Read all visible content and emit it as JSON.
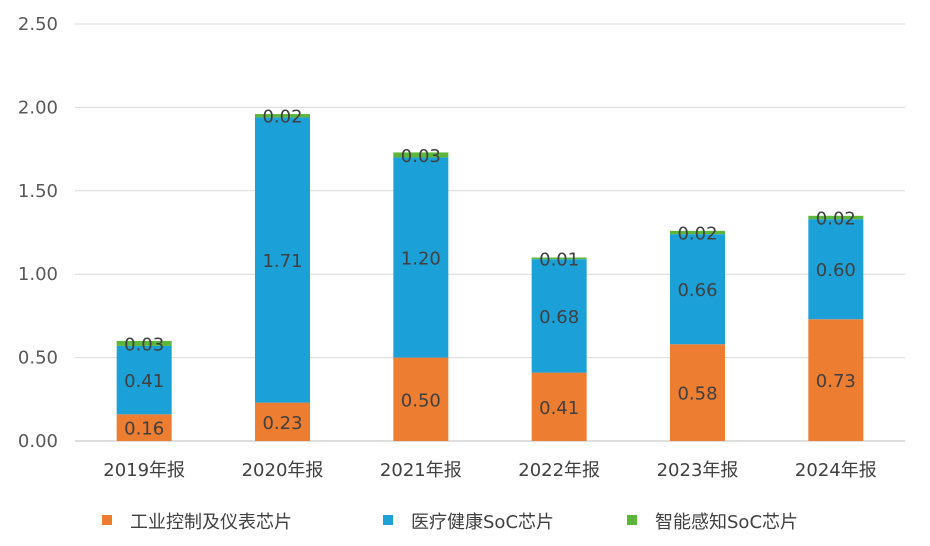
{
  "chart_data": {
    "type": "bar",
    "stacked": true,
    "categories": [
      "2019年报",
      "2020年报",
      "2021年报",
      "2022年报",
      "2023年报",
      "2024年报"
    ],
    "series": [
      {
        "name": "工业控制及仪表芯片",
        "color": "#ED7D31",
        "values": [
          0.16,
          0.23,
          0.5,
          0.41,
          0.58,
          0.73
        ],
        "labels": [
          "0.16",
          "0.23",
          "0.50",
          "0.41",
          "0.58",
          "0.73"
        ]
      },
      {
        "name": "医疗健康SoC芯片",
        "color": "#1BA1D8",
        "values": [
          0.41,
          1.71,
          1.2,
          0.68,
          0.66,
          0.6
        ],
        "labels": [
          "0.41",
          "1.71",
          "1.20",
          "0.68",
          "0.66",
          "0.60"
        ]
      },
      {
        "name": "智能感知SoC芯片",
        "color": "#5DB53C",
        "values": [
          0.03,
          0.02,
          0.03,
          0.01,
          0.02,
          0.02
        ],
        "labels": [
          "0.03",
          "0.02",
          "0.03",
          "0.01",
          "0.02",
          "0.02"
        ]
      }
    ],
    "yticks": [
      "0.00",
      "0.50",
      "1.00",
      "1.50",
      "2.00",
      "2.50"
    ],
    "ylim": [
      0,
      2.5
    ],
    "grid": true,
    "legend": "bottom"
  }
}
